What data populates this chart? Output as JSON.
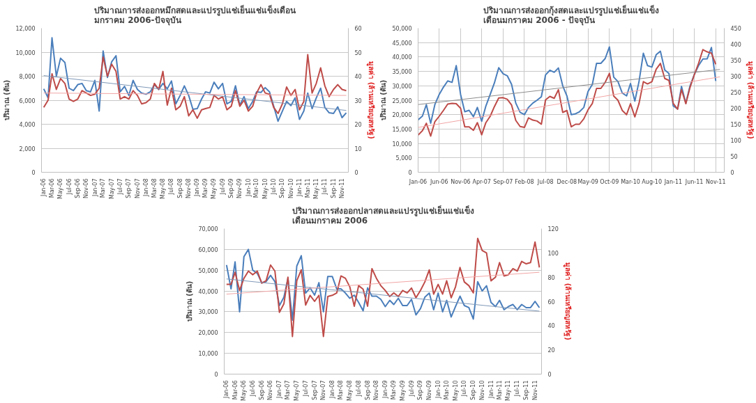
{
  "chart_data": [
    {
      "type": "line",
      "title": "ปริมาณการส่งออกหมึกสดและแปรรูปแช่เย็นแช่แข็งเดือน\nมกราคม 2006-ปัจจุบัน",
      "ylabel": "ปริมาณ (ตัน)",
      "y2label": "มูลค่า (ล้านเหรียญสหรัฐ)",
      "grid": "y",
      "x": [
        "2006-01",
        "2006-02",
        "2006-03",
        "2006-04",
        "2006-05",
        "2006-06",
        "2006-07",
        "2006-08",
        "2006-09",
        "2006-10",
        "2006-11",
        "2006-12",
        "2007-01",
        "2007-02",
        "2007-03",
        "2007-04",
        "2007-05",
        "2007-06",
        "2007-07",
        "2007-08",
        "2007-09",
        "2007-10",
        "2007-11",
        "2007-12",
        "2008-01",
        "2008-02",
        "2008-03",
        "2008-04",
        "2008-05",
        "2008-06",
        "2008-07",
        "2008-08",
        "2008-09",
        "2008-10",
        "2008-11",
        "2008-12",
        "2009-01",
        "2009-02",
        "2009-03",
        "2009-04",
        "2009-05",
        "2009-06",
        "2009-07",
        "2009-08",
        "2009-09",
        "2009-10",
        "2009-11",
        "2009-12",
        "2010-01",
        "2010-02",
        "2010-03",
        "2010-04",
        "2010-05",
        "2010-06",
        "2010-07",
        "2010-08",
        "2010-09",
        "2010-10",
        "2010-11",
        "2010-12",
        "2011-01",
        "2011-02",
        "2011-03",
        "2011-04",
        "2011-05",
        "2011-06",
        "2011-07",
        "2011-08",
        "2011-09",
        "2011-10",
        "2011-11",
        "2011-12"
      ],
      "xlim": [
        "2005-12-16",
        "2011-12-16"
      ],
      "xticks": [
        {
          "value": "2006-01",
          "label": "Jan-06"
        },
        {
          "value": "2006-03",
          "label": "Mar-06"
        },
        {
          "value": "2006-05",
          "label": "May-06"
        },
        {
          "value": "2006-07",
          "label": "Jul-06"
        },
        {
          "value": "2006-09",
          "label": "Sep-06"
        },
        {
          "value": "2006-11",
          "label": "Nov-06"
        },
        {
          "value": "2007-01",
          "label": "Jan-07"
        },
        {
          "value": "2007-03",
          "label": "Mar-07"
        },
        {
          "value": "2007-05",
          "label": "May-07"
        },
        {
          "value": "2007-07",
          "label": "Jul-07"
        },
        {
          "value": "2007-09",
          "label": "Sep-07"
        },
        {
          "value": "2007-11",
          "label": "Nov-07"
        },
        {
          "value": "2008-01",
          "label": "Jan-08"
        },
        {
          "value": "2008-03",
          "label": "Mar-08"
        },
        {
          "value": "2008-05",
          "label": "May-08"
        },
        {
          "value": "2008-07",
          "label": "Jul-08"
        },
        {
          "value": "2008-09",
          "label": "Sep-08"
        },
        {
          "value": "2008-11",
          "label": "Nov-08"
        },
        {
          "value": "2009-01",
          "label": "Jan-09"
        },
        {
          "value": "2009-03",
          "label": "Mar-09"
        },
        {
          "value": "2009-05",
          "label": "May-09"
        },
        {
          "value": "2009-07",
          "label": "Jul-09"
        },
        {
          "value": "2009-09",
          "label": "Sep-09"
        },
        {
          "value": "2009-11",
          "label": "Nov-09"
        },
        {
          "value": "2010-01",
          "label": "Jan-10"
        },
        {
          "value": "2010-03",
          "label": "Mar-10"
        },
        {
          "value": "2010-05",
          "label": "May-10"
        },
        {
          "value": "2010-07",
          "label": "Jul-10"
        },
        {
          "value": "2010-09",
          "label": "Sep-10"
        },
        {
          "value": "2010-11",
          "label": "Nov-10"
        },
        {
          "value": "2011-01",
          "label": "Jan-11"
        },
        {
          "value": "2011-03",
          "label": "Mar-11"
        },
        {
          "value": "2011-05",
          "label": "May-11"
        },
        {
          "value": "2011-07",
          "label": "Jul-11"
        },
        {
          "value": "2011-09",
          "label": "Sep-11"
        },
        {
          "value": "2011-11",
          "label": "Nov-11"
        }
      ],
      "ylim": [
        0,
        12000
      ],
      "yticks": [
        0,
        {
          "value": 2000,
          "label": "2,000"
        },
        {
          "value": 4000,
          "label": "4,000"
        },
        {
          "value": 6000,
          "label": "6,000"
        },
        {
          "value": 8000,
          "label": "8,000"
        },
        {
          "value": 10000,
          "label": "10,000"
        },
        {
          "value": 12000,
          "label": "12,000"
        }
      ],
      "y2lim": [
        0,
        60
      ],
      "y2ticks": [
        0,
        10,
        20,
        30,
        40,
        50,
        60
      ],
      "series": [
        {
          "color": "#4a7ebb",
          "values": [
            6950,
            6200,
            11200,
            8000,
            9500,
            9150,
            7000,
            6800,
            7300,
            7400,
            6800,
            6700,
            7650,
            5100,
            10100,
            7900,
            9200,
            9700,
            6700,
            7150,
            6400,
            7650,
            6900,
            6600,
            6500,
            6700,
            7300,
            6900,
            7400,
            6950,
            7600,
            5700,
            6400,
            7200,
            6400,
            5250,
            5300,
            6100,
            6700,
            6600,
            7500,
            6950,
            7400,
            5700,
            5900,
            7200,
            5600,
            6300,
            5300,
            5900,
            6700,
            6650,
            7050,
            6700,
            5500,
            4250,
            5100,
            5900,
            5550,
            6200,
            4400,
            5100,
            6600,
            5300,
            6200,
            7000,
            5400,
            4950,
            4900,
            5450,
            4550,
            4950
          ]
        },
        {
          "color": "#be4b48",
          "axis": "y2",
          "values": [
            27,
            30,
            41,
            34.5,
            39,
            37,
            30.5,
            29.5,
            30.5,
            34,
            33,
            32,
            32.5,
            35,
            48,
            40,
            45,
            42,
            30.5,
            31.5,
            30.5,
            34,
            32,
            28.5,
            29,
            30.5,
            37,
            34.5,
            42,
            28,
            35,
            26,
            27.5,
            31.5,
            23.5,
            26,
            22.5,
            26,
            26.5,
            27,
            32,
            30.5,
            31.5,
            26,
            27.5,
            34,
            27.5,
            30,
            25.5,
            27.5,
            33,
            36.5,
            33,
            32.5,
            27,
            24.5,
            28.5,
            35.5,
            32,
            34.5,
            26,
            29.5,
            49,
            33,
            37,
            43.5,
            36,
            31.5,
            34.5,
            36.5,
            34.5,
            34
          ]
        },
        {
          "type": "line",
          "color": "#7f98b8",
          "x": [
            "2006-01",
            "2011-12"
          ],
          "values": [
            8050,
            5150
          ]
        },
        {
          "type": "line",
          "color": "#f2a5a5",
          "axis": "y2",
          "x": [
            "2006-01",
            "2011-12"
          ],
          "values": [
            33,
            32
          ]
        }
      ]
    },
    {
      "type": "line",
      "title": "ปริมาณการส่งออกกุ้งสดและแปรรูปแช่เย็นแช่แข็ง\nเดือนมกราคม 2006 - ปัจจุบัน",
      "ylabel": "ปริมาณ (ตัน)",
      "y2label": "มูลค่า (ล้านเหรียญสหรัฐ)",
      "grid": true,
      "x": [
        "2006-01",
        "2006-02",
        "2006-03",
        "2006-04",
        "2006-05",
        "2006-06",
        "2006-07",
        "2006-08",
        "2006-09",
        "2006-10",
        "2006-11",
        "2006-12",
        "2007-01",
        "2007-02",
        "2007-03",
        "2007-04",
        "2007-05",
        "2007-06",
        "2007-07",
        "2007-08",
        "2007-09",
        "2007-10",
        "2007-11",
        "2007-12",
        "2008-01",
        "2008-02",
        "2008-03",
        "2008-04",
        "2008-05",
        "2008-06",
        "2008-07",
        "2008-08",
        "2008-09",
        "2008-10",
        "2008-11",
        "2008-12",
        "2009-01",
        "2009-02",
        "2009-03",
        "2009-04",
        "2009-05",
        "2009-06",
        "2009-07",
        "2009-08",
        "2009-09",
        "2009-10",
        "2009-11",
        "2009-12",
        "2010-01",
        "2010-02",
        "2010-03",
        "2010-04",
        "2010-05",
        "2010-06",
        "2010-07",
        "2010-08",
        "2010-09",
        "2010-10",
        "2010-11",
        "2010-12",
        "2011-01",
        "2011-02",
        "2011-03",
        "2011-04",
        "2011-05",
        "2011-06",
        "2011-07",
        "2011-08",
        "2011-09",
        "2011-10",
        "2011-11"
      ],
      "xlim": [
        "2006-01",
        "2012-01"
      ],
      "xticks": [
        {
          "value": "2006-01",
          "label": "Jan-06"
        },
        {
          "value": "2006-06",
          "label": "Jun-06"
        },
        {
          "value": "2006-11",
          "label": "Nov-06"
        },
        {
          "value": "2007-04",
          "label": "Apr-07"
        },
        {
          "value": "2007-09",
          "label": "Sep-07"
        },
        {
          "value": "2008-02",
          "label": "Feb-08"
        },
        {
          "value": "2008-07",
          "label": "Jul-08"
        },
        {
          "value": "2008-12",
          "label": "Dec-08"
        },
        {
          "value": "2009-05",
          "label": "May-09"
        },
        {
          "value": "2009-10",
          "label": "Oct-09"
        },
        {
          "value": "2010-03",
          "label": "Mar-10"
        },
        {
          "value": "2010-08",
          "label": "Aug-10"
        },
        {
          "value": "2011-01",
          "label": "Jan-11"
        },
        {
          "value": "2011-06",
          "label": "Jun-11"
        },
        {
          "value": "2011-11",
          "label": "Nov-11"
        }
      ],
      "ylim": [
        0,
        50000
      ],
      "yticks": [
        0,
        {
          "value": 5000,
          "label": "5,000"
        },
        {
          "value": 10000,
          "label": "10,000"
        },
        {
          "value": 15000,
          "label": "15,000"
        },
        {
          "value": 20000,
          "label": "20,000"
        },
        {
          "value": 25000,
          "label": "25,000"
        },
        {
          "value": 30000,
          "label": "30,000"
        },
        {
          "value": 35000,
          "label": "35,000"
        },
        {
          "value": 40000,
          "label": "40,000"
        },
        {
          "value": 45000,
          "label": "45,000"
        },
        {
          "value": 50000,
          "label": "50,000"
        }
      ],
      "y2lim": [
        0,
        450
      ],
      "y2ticks": [
        0,
        50,
        100,
        150,
        200,
        250,
        300,
        350,
        400,
        450
      ],
      "series": [
        {
          "color": "#4a7ebb",
          "values": [
            18200,
            19500,
            23500,
            17000,
            23500,
            27000,
            29500,
            31700,
            31200,
            37000,
            27000,
            21000,
            21500,
            19300,
            22500,
            17700,
            23000,
            27000,
            31000,
            36300,
            34200,
            33500,
            30500,
            24000,
            20800,
            20000,
            22500,
            24000,
            25000,
            26200,
            33800,
            35400,
            34700,
            36200,
            30000,
            26500,
            20000,
            20300,
            21000,
            22500,
            28000,
            30500,
            37800,
            37800,
            39500,
            43500,
            33000,
            31500,
            27500,
            26500,
            30800,
            24700,
            31500,
            41300,
            37000,
            36500,
            40800,
            42000,
            35500,
            34300,
            23000,
            22000,
            29800,
            24000,
            30000,
            34000,
            37000,
            39300,
            39400,
            43300,
            31700
          ]
        },
        {
          "color": "#be4b48",
          "axis": "y2",
          "values": [
            116,
            130,
            153,
            113,
            158,
            175,
            193,
            213,
            215,
            214,
            200,
            142,
            142,
            131,
            155,
            117,
            155,
            175,
            205,
            232,
            233,
            228,
            210,
            162,
            143,
            140,
            170,
            163,
            160,
            150,
            226,
            237,
            231,
            258,
            187,
            193,
            142,
            150,
            150,
            167,
            195,
            215,
            262,
            262,
            281,
            309,
            238,
            225,
            193,
            180,
            214,
            173,
            215,
            283,
            276,
            283,
            322,
            340,
            293,
            287,
            215,
            197,
            258,
            214,
            265,
            305,
            340,
            383,
            376,
            372,
            337
          ]
        },
        {
          "type": "line",
          "color": "#8c8c8c",
          "x": [
            "2006-01",
            "2011-12"
          ],
          "values": [
            23500,
            35700
          ]
        },
        {
          "type": "line",
          "color": "#f2a5a5",
          "axis": "y2",
          "x": [
            "2006-01",
            "2011-12"
          ],
          "values": [
            140,
            298
          ]
        }
      ]
    },
    {
      "type": "line",
      "title": "ปริมาณการส่งออกปลาสดและแปรรูปแช่เย็นแช่แข็ง\nเดือนมกราคม 2006",
      "ylabel": "ปริมาณ (ตัน)",
      "y2label": "มูลค่า (ล้านเหรียญสหรัฐ)",
      "grid": "y",
      "x": [
        "2006-01",
        "2006-02",
        "2006-03",
        "2006-04",
        "2006-05",
        "2006-06",
        "2006-07",
        "2006-08",
        "2006-09",
        "2006-10",
        "2006-11",
        "2006-12",
        "2007-01",
        "2007-02",
        "2007-03",
        "2007-04",
        "2007-05",
        "2007-06",
        "2007-07",
        "2007-08",
        "2007-09",
        "2007-10",
        "2007-11",
        "2007-12",
        "2008-01",
        "2008-02",
        "2008-03",
        "2008-04",
        "2008-05",
        "2008-06",
        "2008-07",
        "2008-08",
        "2008-09",
        "2008-10",
        "2008-11",
        "2008-12",
        "2009-01",
        "2009-02",
        "2009-03",
        "2009-04",
        "2009-05",
        "2009-06",
        "2009-07",
        "2009-08",
        "2009-09",
        "2009-10",
        "2009-11",
        "2009-12",
        "2010-01",
        "2010-02",
        "2010-03",
        "2010-04",
        "2010-05",
        "2010-06",
        "2010-07",
        "2010-08",
        "2010-09",
        "2010-10",
        "2010-11",
        "2010-12",
        "2011-01",
        "2011-02",
        "2011-03",
        "2011-04",
        "2011-05",
        "2011-06",
        "2011-07",
        "2011-08",
        "2011-09",
        "2011-10",
        "2011-11",
        "2011-12"
      ],
      "xlim": [
        "2005-12-16",
        "2011-12-16"
      ],
      "xticks": [
        {
          "value": "2006-01",
          "label": "Jan-06"
        },
        {
          "value": "2006-03",
          "label": "Mar-06"
        },
        {
          "value": "2006-05",
          "label": "May-06"
        },
        {
          "value": "2006-07",
          "label": "Jul-06"
        },
        {
          "value": "2006-09",
          "label": "Sep-06"
        },
        {
          "value": "2006-11",
          "label": "Nov-06"
        },
        {
          "value": "2007-01",
          "label": "Jan-07"
        },
        {
          "value": "2007-03",
          "label": "Mar-07"
        },
        {
          "value": "2007-05",
          "label": "May-07"
        },
        {
          "value": "2007-07",
          "label": "Jul-07"
        },
        {
          "value": "2007-09",
          "label": "Sep-07"
        },
        {
          "value": "2007-11",
          "label": "Nov-07"
        },
        {
          "value": "2008-01",
          "label": "Jan-08"
        },
        {
          "value": "2008-03",
          "label": "Mar-08"
        },
        {
          "value": "2008-05",
          "label": "May-08"
        },
        {
          "value": "2008-07",
          "label": "Jul-08"
        },
        {
          "value": "2008-09",
          "label": "Sep-08"
        },
        {
          "value": "2008-11",
          "label": "Nov-08"
        },
        {
          "value": "2009-01",
          "label": "Jan-09"
        },
        {
          "value": "2009-03",
          "label": "Mar-09"
        },
        {
          "value": "2009-05",
          "label": "May-09"
        },
        {
          "value": "2009-07",
          "label": "Jul-09"
        },
        {
          "value": "2009-09",
          "label": "Sep-09"
        },
        {
          "value": "2009-11",
          "label": "Nov-09"
        },
        {
          "value": "2010-01",
          "label": "Jan-10"
        },
        {
          "value": "2010-03",
          "label": "Mar-10"
        },
        {
          "value": "2010-05",
          "label": "May-10"
        },
        {
          "value": "2010-07",
          "label": "Jul-10"
        },
        {
          "value": "2010-09",
          "label": "Sep-10"
        },
        {
          "value": "2010-11",
          "label": "Nov-10"
        },
        {
          "value": "2011-01",
          "label": "Jan-11"
        },
        {
          "value": "2011-03",
          "label": "Mar-11"
        },
        {
          "value": "2011-05",
          "label": "May-11"
        },
        {
          "value": "2011-07",
          "label": "Jul-11"
        },
        {
          "value": "2011-09",
          "label": "Sep-11"
        },
        {
          "value": "2011-11",
          "label": "Nov-11"
        }
      ],
      "ylim": [
        0,
        70000
      ],
      "yticks": [
        0,
        {
          "value": 10000,
          "label": "10,000"
        },
        {
          "value": 20000,
          "label": "20,000"
        },
        {
          "value": 30000,
          "label": "30,000"
        },
        {
          "value": 40000,
          "label": "40,000"
        },
        {
          "value": 50000,
          "label": "50,000"
        },
        {
          "value": 60000,
          "label": "60,000"
        },
        {
          "value": 70000,
          "label": "70,000"
        }
      ],
      "y2lim": [
        0,
        120
      ],
      "y2ticks": [
        0,
        20,
        40,
        60,
        80,
        100,
        120
      ],
      "series": [
        {
          "color": "#4a7ebb",
          "values": [
            52500,
            41000,
            54000,
            30000,
            56500,
            60000,
            50000,
            48500,
            44000,
            44500,
            47500,
            44500,
            33000,
            37000,
            46000,
            26000,
            52000,
            57000,
            39000,
            41500,
            38000,
            44000,
            30000,
            47000,
            47000,
            41000,
            41000,
            39000,
            36500,
            38000,
            34500,
            30500,
            41500,
            37500,
            37500,
            36000,
            32500,
            35500,
            33500,
            36500,
            33000,
            33000,
            36000,
            28500,
            31500,
            37000,
            39000,
            31000,
            39000,
            30000,
            35500,
            27500,
            32500,
            37500,
            33000,
            32000,
            26500,
            44500,
            40000,
            42500,
            34500,
            32500,
            35500,
            31000,
            32500,
            33500,
            31000,
            33500,
            32000,
            32000,
            35000,
            32000
          ]
        },
        {
          "color": "#be4b48",
          "axis": "y2",
          "values": [
            74,
            74,
            84,
            69,
            79,
            85,
            82,
            85,
            75,
            77,
            90,
            85,
            51,
            58,
            80,
            31,
            77,
            86,
            57,
            65,
            60,
            65,
            31,
            64,
            65,
            67,
            81,
            79,
            72,
            56,
            73,
            70,
            56,
            87,
            79,
            73,
            69,
            64,
            67,
            64,
            69,
            67,
            71,
            63,
            69,
            76,
            86,
            66,
            74,
            66,
            77,
            63,
            72,
            88,
            76,
            73,
            67,
            112,
            102,
            100,
            77,
            80,
            92,
            81,
            82,
            87,
            85,
            93,
            91,
            92,
            109,
            88
          ]
        },
        {
          "type": "line",
          "color": "#7f98b8",
          "x": [
            "2006-01",
            "2011-12"
          ],
          "values": [
            45800,
            30300
          ]
        },
        {
          "type": "line",
          "color": "#f2a5a5",
          "axis": "y2",
          "x": [
            "2006-01",
            "2011-12"
          ],
          "values": [
            66,
            84
          ]
        }
      ]
    }
  ]
}
